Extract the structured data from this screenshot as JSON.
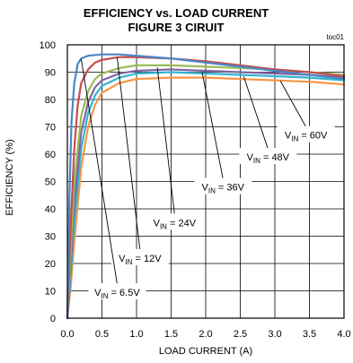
{
  "chart_data": {
    "type": "line",
    "title": "EFFICIENCY vs. LOAD CURRENT",
    "subtitle": "FIGURE 3 CIRUIT",
    "corner_tag": "toc01",
    "xlabel": "LOAD CURRENT  (A)",
    "ylabel": "EFFICIENCY (%)",
    "xlim": [
      0,
      4
    ],
    "ylim": [
      0,
      100
    ],
    "x_ticks": [
      "0.0",
      "0.5",
      "1.0",
      "1.5",
      "2.0",
      "2.5",
      "3.0",
      "3.5",
      "4.0"
    ],
    "y_ticks": [
      "0",
      "10",
      "20",
      "30",
      "40",
      "50",
      "60",
      "70",
      "80",
      "90",
      "100"
    ],
    "grid": true,
    "series": [
      {
        "name": "VIN = 6.5V",
        "color": "#4a86c8",
        "x": [
          0,
          0.03,
          0.06,
          0.1,
          0.15,
          0.2,
          0.3,
          0.5,
          0.75,
          1.0,
          1.5,
          2.0,
          2.5,
          3.0,
          3.5,
          4.0
        ],
        "y": [
          0,
          45,
          72,
          86,
          93,
          95,
          96,
          96.5,
          96.5,
          96,
          95,
          93.5,
          92,
          90.5,
          89,
          87.5
        ]
      },
      {
        "name": "VIN = 12V",
        "color": "#c0504d",
        "x": [
          0,
          0.05,
          0.1,
          0.15,
          0.2,
          0.3,
          0.4,
          0.5,
          0.75,
          1.0,
          1.5,
          2.0,
          2.5,
          3.0,
          3.5,
          4.0
        ],
        "y": [
          0,
          35,
          62,
          78,
          86,
          91,
          93.5,
          94.5,
          95.5,
          95.5,
          95,
          94,
          92.5,
          91,
          90,
          88.5
        ]
      },
      {
        "name": "VIN = 24V",
        "color": "#9bbb59",
        "x": [
          0,
          0.05,
          0.1,
          0.2,
          0.3,
          0.4,
          0.5,
          0.75,
          1.0,
          1.5,
          2.0,
          2.5,
          3.0,
          3.5,
          4.0
        ],
        "y": [
          0,
          25,
          50,
          74,
          83,
          87.5,
          89.5,
          91.5,
          92.5,
          92.5,
          92,
          91.5,
          91,
          90,
          89
        ]
      },
      {
        "name": "VIN = 36V",
        "color": "#8064a2",
        "x": [
          0,
          0.05,
          0.1,
          0.2,
          0.3,
          0.4,
          0.5,
          0.75,
          1.0,
          1.5,
          2.0,
          2.5,
          3.0,
          3.5,
          4.0
        ],
        "y": [
          0,
          20,
          42,
          68,
          79,
          84.5,
          87,
          89.5,
          90.5,
          91,
          90.5,
          90,
          89.5,
          89,
          88
        ]
      },
      {
        "name": "VIN = 48V",
        "color": "#31b4d0",
        "x": [
          0,
          0.05,
          0.1,
          0.2,
          0.3,
          0.4,
          0.5,
          0.75,
          1.0,
          1.5,
          2.0,
          2.5,
          3.0,
          3.5,
          4.0
        ],
        "y": [
          0,
          16,
          35,
          62,
          75,
          81.5,
          85,
          88,
          89.5,
          90,
          89.5,
          89,
          88.5,
          88,
          87
        ]
      },
      {
        "name": "VIN = 60V",
        "color": "#f79646",
        "x": [
          0,
          0.05,
          0.1,
          0.2,
          0.3,
          0.4,
          0.5,
          0.75,
          1.0,
          1.5,
          2.0,
          2.5,
          3.0,
          3.5,
          4.0
        ],
        "y": [
          0,
          12,
          28,
          55,
          70,
          78,
          82.5,
          86,
          87.5,
          88,
          88,
          87.5,
          87,
          86.5,
          85.5
        ]
      }
    ],
    "annotations": [
      {
        "prefix": "V",
        "sub": "IN",
        "suffix": " = 60V"
      },
      {
        "prefix": "V",
        "sub": "IN",
        "suffix": " = 48V"
      },
      {
        "prefix": "V",
        "sub": "IN",
        "suffix": " = 36V"
      },
      {
        "prefix": "V",
        "sub": "IN",
        "suffix": " = 24V"
      },
      {
        "prefix": "V",
        "sub": "IN",
        "suffix": " = 12V"
      },
      {
        "prefix": "V",
        "sub": "IN",
        "suffix": " = 6.5V"
      }
    ]
  }
}
